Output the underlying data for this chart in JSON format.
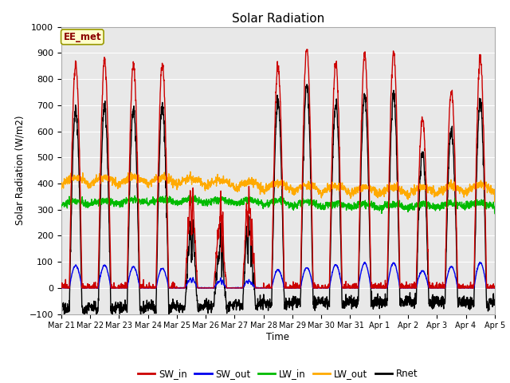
{
  "title": "Solar Radiation",
  "xlabel": "Time",
  "ylabel": "Solar Radiation (W/m2)",
  "ylim": [
    -100,
    1000
  ],
  "background_color": "#e8e8e8",
  "legend_label": "EE_met",
  "x_tick_labels": [
    "Mar 21",
    "Mar 22",
    "Mar 23",
    "Mar 24",
    "Mar 25",
    "Mar 26",
    "Mar 27",
    "Mar 28",
    "Mar 29",
    "Mar 30",
    "Mar 31",
    "Apr 1",
    "Apr 2",
    "Apr 3",
    "Apr 4",
    "Apr 5"
  ],
  "series": {
    "SW_in": {
      "color": "#cc0000",
      "lw": 1.0
    },
    "SW_out": {
      "color": "#0000ee",
      "lw": 1.0
    },
    "LW_in": {
      "color": "#00bb00",
      "lw": 1.0
    },
    "LW_out": {
      "color": "#ffaa00",
      "lw": 1.0
    },
    "Rnet": {
      "color": "#000000",
      "lw": 1.0
    }
  },
  "n_days": 15,
  "pts_per_day": 144
}
